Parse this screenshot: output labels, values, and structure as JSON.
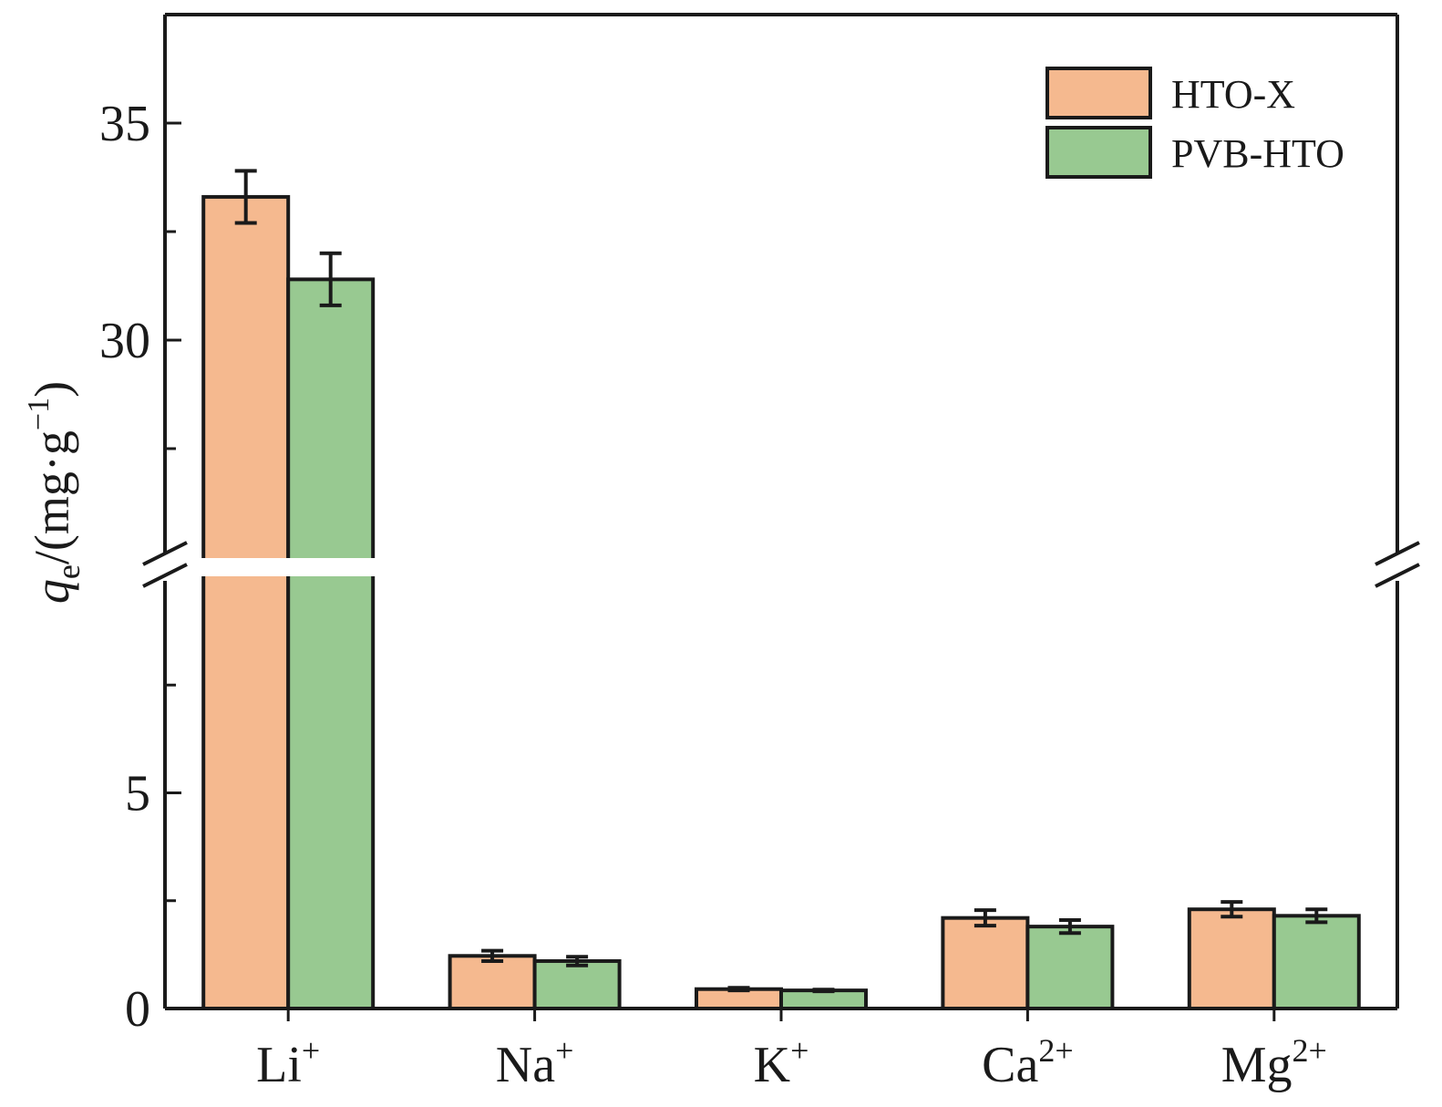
{
  "chart_data": {
    "type": "bar",
    "categories": [
      "Li",
      "Na",
      "K",
      "Ca",
      "Mg"
    ],
    "category_charges": [
      "+",
      "+",
      "+",
      "2+",
      "2+"
    ],
    "series": [
      {
        "name": "HTO-X",
        "color": "#f5b98f",
        "values": [
          33.3,
          1.22,
          0.45,
          2.1,
          2.3
        ],
        "errors": [
          0.6,
          0.12,
          0.03,
          0.18,
          0.17
        ]
      },
      {
        "name": "PVB-HTO",
        "color": "#98c991",
        "values": [
          31.4,
          1.1,
          0.42,
          1.9,
          2.15
        ],
        "errors": [
          0.6,
          0.1,
          0.02,
          0.15,
          0.15
        ]
      }
    ],
    "ylabel": {
      "symbol": "q",
      "subscript": "e",
      "unit_prefix": "/(mg·g",
      "unit_exponent": "−1",
      "unit_suffix": ")"
    },
    "y_axis_broken": true,
    "ylim_lower": [
      0,
      10
    ],
    "ylim_upper": [
      25,
      37.5
    ],
    "yticks_lower": [
      {
        "value": 0,
        "label": "0"
      },
      {
        "value": 2.5,
        "label": ""
      },
      {
        "value": 5,
        "label": "5"
      },
      {
        "value": 7.5,
        "label": ""
      }
    ],
    "yticks_upper": [
      {
        "value": 27.5,
        "label": ""
      },
      {
        "value": 30,
        "label": "30"
      },
      {
        "value": 32.5,
        "label": ""
      },
      {
        "value": 35,
        "label": "35"
      }
    ],
    "legend_position": "top-right",
    "grid": false
  }
}
